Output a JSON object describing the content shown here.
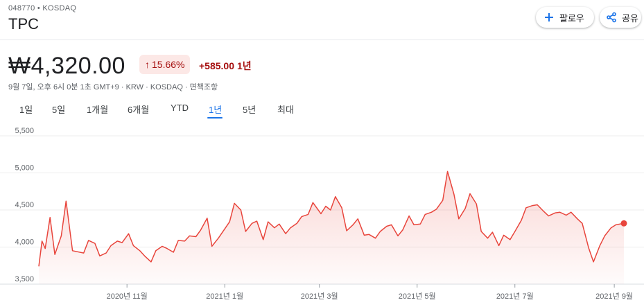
{
  "header": {
    "ticker_line": "048770 • KOSDAQ",
    "symbol": "TPC",
    "follow_label": "팔로우",
    "share_label": "공유",
    "follow_icon": "plus-icon",
    "share_icon": "share-icon"
  },
  "quote": {
    "price": "₩4,320.00",
    "pct_change": "15.66%",
    "abs_change": "+585.00",
    "period": "1년",
    "meta": "9월 7일, 오후 6시 0분 1초 GMT+9 · KRW · KOSDAQ · 면책조항"
  },
  "tabs": [
    {
      "label": "1일"
    },
    {
      "label": "5일"
    },
    {
      "label": "1개월"
    },
    {
      "label": "6개월"
    },
    {
      "label": "YTD"
    },
    {
      "label": "1년"
    },
    {
      "label": "5년"
    },
    {
      "label": "최대"
    }
  ],
  "active_tab": "1년",
  "colors": {
    "negative_text": "#a50e0e",
    "badge_bg": "#fce8e6",
    "accent": "#1a73e8",
    "line": "#e8453c"
  },
  "chart_data": {
    "type": "area",
    "ylim": [
      3500,
      5500
    ],
    "yticks": [
      3500,
      4000,
      4500,
      5000,
      5500
    ],
    "ytick_labels": [
      "3,500",
      "4,000",
      "4,500",
      "5,000",
      "5,500"
    ],
    "x_ticks": [
      {
        "date": "2020-11-01",
        "label": "2020년 11월"
      },
      {
        "date": "2021-01-01",
        "label": "2021년 1월"
      },
      {
        "date": "2021-03-01",
        "label": "2021년 3월"
      },
      {
        "date": "2021-05-01",
        "label": "2021년 5월"
      },
      {
        "date": "2021-07-01",
        "label": "2021년 7월"
      },
      {
        "date": "2021-09-01",
        "label": "2021년 9월"
      }
    ],
    "x_range": [
      "2020-09-07",
      "2021-09-07"
    ],
    "grid": true,
    "series": [
      {
        "x": [
          "2020-09-07",
          "2020-09-09",
          "2020-09-11",
          "2020-09-14",
          "2020-09-17",
          "2020-09-21",
          "2020-09-24",
          "2020-09-28",
          "2020-10-05",
          "2020-10-08",
          "2020-10-12",
          "2020-10-15",
          "2020-10-19",
          "2020-10-22",
          "2020-10-26",
          "2020-10-29",
          "2020-11-02",
          "2020-11-05",
          "2020-11-09",
          "2020-11-12",
          "2020-11-16",
          "2020-11-19",
          "2020-11-23",
          "2020-11-26",
          "2020-11-30",
          "2020-12-03",
          "2020-12-07",
          "2020-12-10",
          "2020-12-14",
          "2020-12-17",
          "2020-12-21",
          "2020-12-24",
          "2020-12-28",
          "2021-01-04",
          "2021-01-07",
          "2021-01-11",
          "2021-01-14",
          "2021-01-18",
          "2021-01-21",
          "2021-01-25",
          "2021-01-28",
          "2021-02-01",
          "2021-02-04",
          "2021-02-08",
          "2021-02-11",
          "2021-02-15",
          "2021-02-18",
          "2021-02-22",
          "2021-02-25",
          "2021-03-02",
          "2021-03-05",
          "2021-03-08",
          "2021-03-11",
          "2021-03-15",
          "2021-03-18",
          "2021-03-22",
          "2021-03-25",
          "2021-03-29",
          "2021-04-01",
          "2021-04-05",
          "2021-04-08",
          "2021-04-12",
          "2021-04-15",
          "2021-04-19",
          "2021-04-22",
          "2021-04-26",
          "2021-04-29",
          "2021-05-03",
          "2021-05-06",
          "2021-05-10",
          "2021-05-13",
          "2021-05-17",
          "2021-05-20",
          "2021-05-24",
          "2021-05-27",
          "2021-05-31",
          "2021-06-03",
          "2021-06-07",
          "2021-06-10",
          "2021-06-14",
          "2021-06-17",
          "2021-06-21",
          "2021-06-24",
          "2021-06-28",
          "2021-07-01",
          "2021-07-05",
          "2021-07-08",
          "2021-07-12",
          "2021-07-15",
          "2021-07-19",
          "2021-07-22",
          "2021-07-26",
          "2021-07-29",
          "2021-08-02",
          "2021-08-05",
          "2021-08-09",
          "2021-08-12",
          "2021-08-16",
          "2021-08-19",
          "2021-08-23",
          "2021-08-26",
          "2021-08-30",
          "2021-09-02",
          "2021-09-07"
        ],
        "values": [
          3740,
          4080,
          3980,
          4400,
          3900,
          4150,
          4620,
          3950,
          3920,
          4090,
          4050,
          3880,
          3920,
          4020,
          4080,
          4060,
          4180,
          4020,
          3950,
          3880,
          3800,
          3950,
          4010,
          3980,
          3930,
          4090,
          4080,
          4150,
          4140,
          4230,
          4390,
          4010,
          4120,
          4340,
          4590,
          4500,
          4210,
          4320,
          4350,
          4100,
          4340,
          4260,
          4310,
          4180,
          4260,
          4320,
          4410,
          4440,
          4600,
          4450,
          4550,
          4500,
          4680,
          4530,
          4220,
          4300,
          4380,
          4160,
          4170,
          4120,
          4210,
          4280,
          4300,
          4150,
          4230,
          4420,
          4300,
          4310,
          4440,
          4470,
          4510,
          4630,
          5020,
          4710,
          4380,
          4520,
          4720,
          4580,
          4210,
          4120,
          4200,
          4020,
          4160,
          4100,
          4210,
          4360,
          4530,
          4560,
          4570,
          4480,
          4420,
          4460,
          4470,
          4430,
          4470,
          4380,
          4320,
          3990,
          3800,
          4020,
          4150,
          4260,
          4300,
          4320
        ]
      }
    ]
  }
}
